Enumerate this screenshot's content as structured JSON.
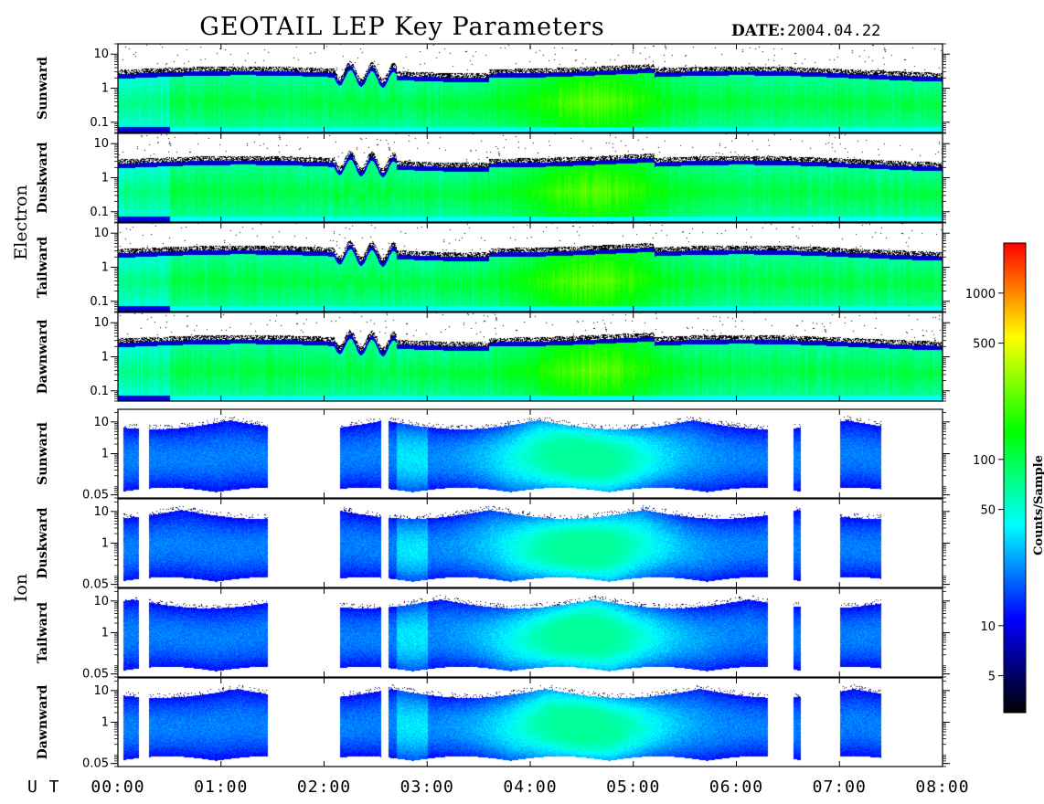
{
  "title": "GEOTAIL LEP Key Parameters",
  "date_label": "DATE:",
  "date_value": "2004.04.22",
  "x_axis_label": "U T",
  "chart_data": {
    "type": "heatmap",
    "x_ticks": [
      "00:00",
      "01:00",
      "02:00",
      "03:00",
      "04:00",
      "05:00",
      "06:00",
      "07:00",
      "08:00"
    ],
    "x_range_hours": [
      0,
      8
    ],
    "colorbar": {
      "label": "Counts/Sample",
      "ticks": [
        5,
        10,
        50,
        100,
        500,
        1000
      ],
      "range": [
        3,
        2000
      ],
      "scale": "log",
      "colors": [
        "#000000",
        "#0000ff",
        "#00ffff",
        "#00ff00",
        "#ffff00",
        "#ff0000"
      ]
    },
    "groups": [
      {
        "name": "Electron",
        "y_scale": "log",
        "y_range": [
          0.05,
          20
        ],
        "y_ticks": [
          {
            "value": 0.1,
            "label": "0.1"
          },
          {
            "value": 1,
            "label": "1"
          },
          {
            "value": 10,
            "label": "10"
          }
        ],
        "panels": [
          "Sunward",
          "Duskward",
          "Tailward",
          "Dawnward"
        ]
      },
      {
        "name": "Ion",
        "y_scale": "log",
        "y_range": [
          0.04,
          25
        ],
        "y_ticks": [
          {
            "value": 0.05,
            "label": "0.05"
          },
          {
            "value": 1,
            "label": "1"
          },
          {
            "value": 10,
            "label": "10"
          }
        ],
        "panels": [
          "Sunward",
          "Duskward",
          "Tailward",
          "Dawnward"
        ]
      }
    ]
  }
}
